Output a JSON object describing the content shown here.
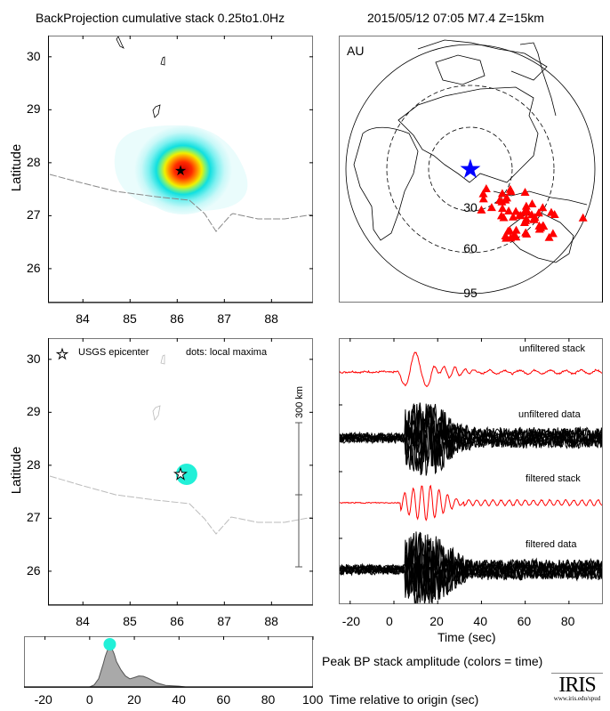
{
  "header": {
    "left_title": "BackProjection cumulative stack 0.25to1.0Hz",
    "right_title": "2015/05/12 07:05  M7.4  Z=15km"
  },
  "colors": {
    "epicenter_star": "#0000ff",
    "stations": "#ff0000",
    "local_max": "#22f0d8",
    "stack_trace": "#ff0000",
    "data_trace": "#000000",
    "amplitude_fill": "#a9a9a9"
  },
  "chart_data": [
    {
      "type": "heatmap",
      "name": "cumulative-stack-map",
      "ylabel": "Latitude",
      "xlim": [
        83.26,
        88.88
      ],
      "ylim": [
        25.36,
        30.4
      ],
      "xticks": [
        "84",
        "85",
        "86",
        "87",
        "88"
      ],
      "yticks": [
        "26",
        "27",
        "28",
        "29",
        "30"
      ],
      "peak": {
        "lon": 86.15,
        "lat": 27.8
      },
      "epicenter": {
        "lon": 86.07,
        "lat": 27.84
      }
    },
    {
      "type": "scatter",
      "name": "station-map",
      "region_label": "AU",
      "ring_labels": [
        "30",
        "60",
        "95"
      ],
      "marker": "triangle"
    },
    {
      "type": "scatter",
      "name": "local-maxima-map",
      "ylabel": "Latitude",
      "xlim": [
        83.26,
        88.88
      ],
      "ylim": [
        25.36,
        30.4
      ],
      "xticks": [
        "84",
        "85",
        "86",
        "87",
        "88"
      ],
      "yticks": [
        "26",
        "27",
        "28",
        "29",
        "30"
      ],
      "legend_star": "USGS epicenter",
      "legend_dots": "dots: local maxima",
      "scale_bar": "300 km",
      "points": [
        {
          "lon": 86.2,
          "lat": 27.83,
          "time": 9
        }
      ],
      "epicenter": {
        "lon": 86.07,
        "lat": 27.84
      }
    },
    {
      "type": "line",
      "name": "seismograms",
      "xlabel": "Time (sec)",
      "xlim": [
        -25.2,
        95.5
      ],
      "xticks": [
        "-20",
        "0",
        "20",
        "40",
        "60",
        "80"
      ],
      "series": [
        {
          "name": "unfiltered stack"
        },
        {
          "name": "unfiltered data"
        },
        {
          "name": "filtered stack"
        },
        {
          "name": "filtered data"
        }
      ]
    },
    {
      "type": "area",
      "name": "peak-amplitude",
      "title": "Peak BP stack amplitude (colors = time)",
      "xlabel": "Time relative to origin (sec)",
      "xlim": [
        -29.4,
        100
      ],
      "xticks": [
        "-20",
        "0",
        "20",
        "40",
        "60",
        "80",
        "100"
      ],
      "x": [
        0,
        2,
        4,
        6,
        7,
        8,
        9,
        10,
        11,
        12,
        14,
        16,
        18,
        20,
        22,
        24,
        26,
        28,
        30,
        34,
        40,
        43
      ],
      "y": [
        0,
        0.05,
        0.2,
        0.55,
        0.75,
        0.9,
        0.97,
        0.93,
        0.8,
        0.62,
        0.42,
        0.27,
        0.2,
        0.23,
        0.27,
        0.26,
        0.22,
        0.16,
        0.1,
        0.04,
        0.02,
        0
      ],
      "peak_marker": {
        "x": 9,
        "y": 1
      }
    }
  ],
  "logo": {
    "text": "IRIS",
    "url_text": "www.iris.edu/spud"
  }
}
